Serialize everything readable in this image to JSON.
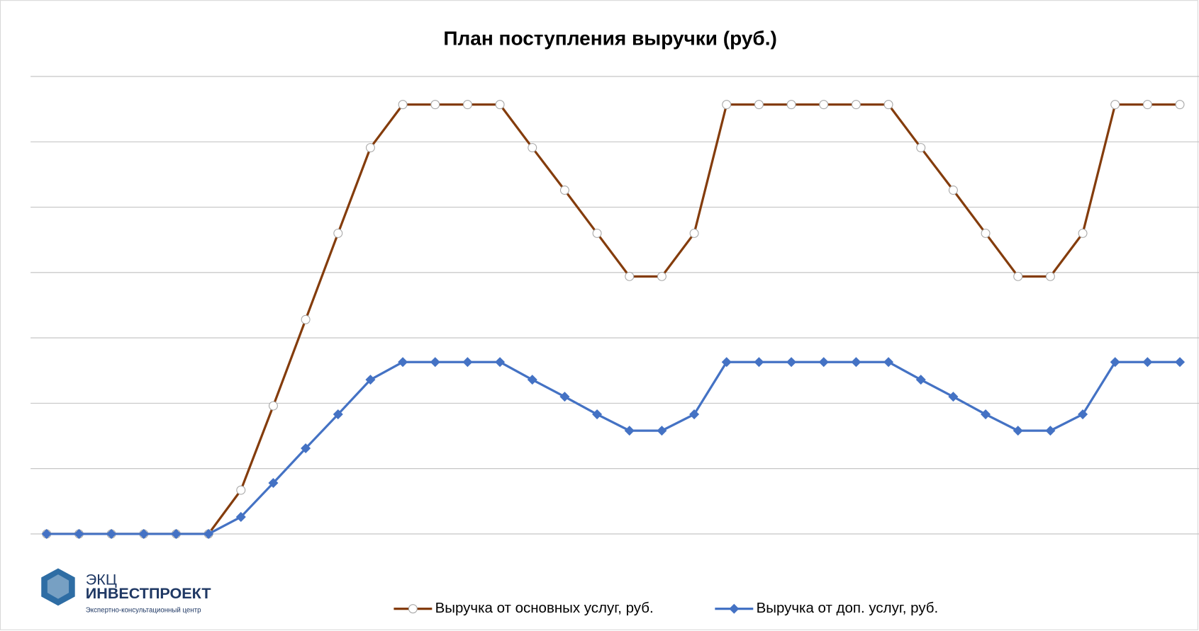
{
  "chart_data": {
    "type": "line",
    "title": "План поступления выручки (руб.)",
    "categories": [
      null,
      null,
      null,
      null,
      null,
      null,
      null,
      null,
      null,
      null,
      null,
      null,
      null,
      null,
      null,
      null,
      null,
      null,
      null,
      null,
      null,
      null,
      null,
      null,
      null,
      null,
      null,
      null,
      null,
      null,
      null,
      null,
      null,
      null,
      null,
      null
    ],
    "series": [
      {
        "name": "Выручка от основных услуг, руб.",
        "color": "#843c0c",
        "marker": "circle",
        "values": [
          0,
          0,
          0,
          0,
          0,
          0,
          0.67,
          1.96,
          3.28,
          4.6,
          5.91,
          6.57,
          6.57,
          6.57,
          6.57,
          5.91,
          5.26,
          4.6,
          3.94,
          3.94,
          4.6,
          6.57,
          6.57,
          6.57,
          6.57,
          6.57,
          6.57,
          5.91,
          5.26,
          4.6,
          3.94,
          3.94,
          4.6,
          6.57,
          6.57,
          6.57
        ]
      },
      {
        "name": "Выручка от доп. услуг, руб.",
        "color": "#4472c4",
        "marker": "diamond",
        "values": [
          0,
          0,
          0,
          0,
          0,
          0,
          0.26,
          0.78,
          1.31,
          1.83,
          2.36,
          2.63,
          2.63,
          2.63,
          2.63,
          2.36,
          2.1,
          1.83,
          1.58,
          1.58,
          1.83,
          2.63,
          2.63,
          2.63,
          2.63,
          2.63,
          2.63,
          2.36,
          2.1,
          1.83,
          1.58,
          1.58,
          1.83,
          2.63,
          2.63,
          2.63
        ]
      }
    ],
    "ylim": [
      0,
      7
    ],
    "yticks": [
      0,
      1,
      2,
      3,
      4,
      5,
      6,
      7
    ],
    "grid": true,
    "legend": "bottom"
  },
  "logo": {
    "line1": "ЭКЦ",
    "line2": "ИНВЕСТПРОЕКТ",
    "line3": "Экспертно-консультационный центр"
  }
}
